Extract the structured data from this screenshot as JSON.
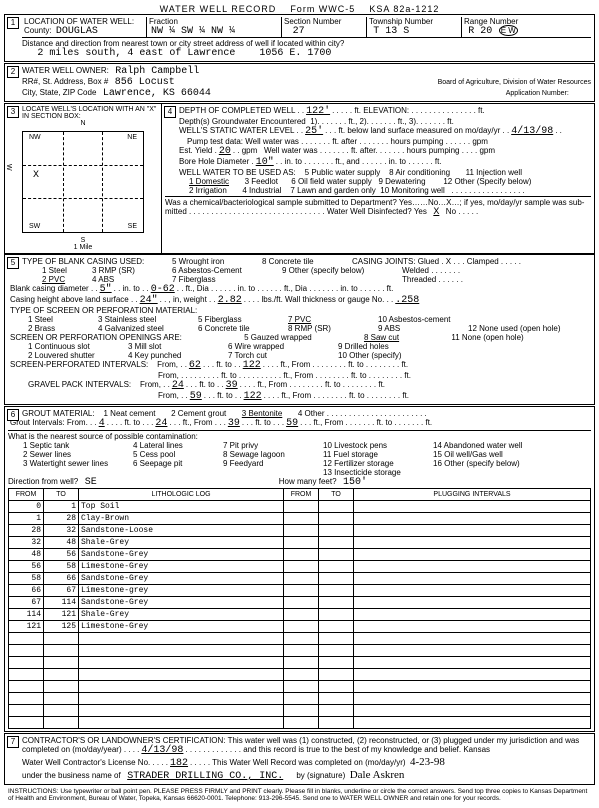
{
  "header": {
    "title": "WATER WELL RECORD",
    "form": "Form WWC-5",
    "ksa": "KSA 82a-1212"
  },
  "sec1": {
    "title": "LOCATION OF WATER WELL:",
    "county_label": "County:",
    "county": "DOUGLAS",
    "fraction_label": "Fraction",
    "fraction": "NW ¼   SW ¼   NW ¼",
    "section_label": "Section Number",
    "section": "27",
    "township_label": "Township Number",
    "township": "T 13 S",
    "range_label": "Range Number",
    "range": "R 20",
    "range_ew": "E W",
    "distance_label": "Distance and direction from nearest town or city street address of well if located within city?",
    "distance": "2 miles south, 4 east of Lawrence",
    "street": "1056 E. 1700"
  },
  "sec2": {
    "title": "WATER WELL OWNER:",
    "owner": "Ralph Campbell",
    "addr_label": "RR#, St. Address, Box #",
    "addr": "856 Locust",
    "city_label": "City, State, ZIP Code",
    "city": "Lawrence, KS  66044",
    "board": "Board of Agriculture, Division of Water Resources",
    "app_label": "Application Number:"
  },
  "sec3": {
    "title": "LOCATE WELL'S LOCATION WITH AN \"X\" IN SECTION BOX:",
    "n": "N",
    "s": "S",
    "e": "E",
    "w": "W",
    "nw": "NW",
    "ne": "NE",
    "sw": "SW",
    "se": "SE",
    "mile": "1 Mile"
  },
  "sec4": {
    "title": "DEPTH OF COMPLETED WELL",
    "depth": "122'",
    "ft": "ft.",
    "elev_label": "ELEVATION:",
    "gw_enc": "Depth(s) Groundwater Encountered",
    "enc1": "1)",
    "enc2": "2)",
    "enc3": "3)",
    "swl_label": "WELL'S STATIC WATER LEVEL",
    "swl": "25'",
    "swl_text": "ft. below land surface measured on mo/day/yr",
    "swl_date": "4/13/98",
    "pump_label": "Pump test data:  Well water was",
    "after1": "ft. after",
    "hours1": "hours pumping",
    "gpm": "gpm",
    "yield_label": "Est. Yield",
    "yield": "20",
    "yield_unit": "gpm",
    "well_was": "Well water was",
    "bore_label": "Bore Hole Diameter",
    "bore": "10\"",
    "into": "in. to",
    "use_label": "WELL WATER TO BE USED AS:",
    "uses": [
      "1 Domestic",
      "2 Irrigation",
      "3 Feedlot",
      "4 Industrial",
      "5 Public water supply",
      "6 Oil field water supply",
      "7 Lawn and garden only",
      "8 Air conditioning",
      "9 Dewatering",
      "10 Monitoring well",
      "11 Injection well",
      "12 Other (Specify below)"
    ],
    "chem_q": "Was a chemical/bacteriological sample submitted to Department? Yes……No…X…; if yes, mo/day/yr sample was sub-",
    "chem_q2": "mitted",
    "dis_label": "Water Well Disinfected? Yes",
    "dis_x": "X",
    "dis_no": "No"
  },
  "sec5": {
    "title": "TYPE OF BLANK CASING USED:",
    "opts1": [
      "1 Steel",
      "2 PVC",
      "3 RMP (SR)",
      "4 ABS",
      "5 Wrought iron",
      "6 Asbestos-Cement",
      "7 Fiberglass",
      "8 Concrete tile",
      "9 Other (specify below)"
    ],
    "joints": "CASING JOINTS: Glued . X . . . Clamped . . . . .",
    "welded": "Welded . . . . . . .",
    "threaded": "Threaded . . . . . .",
    "blank_dia_label": "Blank casing diameter",
    "blank_dia": "5\"",
    "blank_to": "0-62",
    "ft_dia": "ft., Dia",
    "in_to": "in. to",
    "casing_h_label": "Casing height above land surface",
    "casing_h": "24\"",
    "weight": ", in, weight",
    "weight_v": "2.82",
    "lbs": "lbs./ft. Wall thickness or gauge No.",
    "gauge": ".258",
    "screen_label": "TYPE OF SCREEN OR PERFORATION MATERIAL:",
    "screen_opts": [
      "1 Steel",
      "2 Brass",
      "3 Stainless steel",
      "4 Galvanized steel",
      "5 Fiberglass",
      "6 Concrete tile",
      "7 PVC",
      "8 RMP (SR)",
      "9 ABS",
      "10 Asbestos-cement",
      "11 Other (specify)",
      "12 None used (open hole)"
    ],
    "open_label": "SCREEN OR PERFORATION OPENINGS ARE:",
    "open_opts": [
      "1 Continuous slot",
      "2 Louvered shutter",
      "3 Mill slot",
      "4 Key punched",
      "5 Gauzed wrapped",
      "6 Wire wrapped",
      "7 Torch cut",
      "8 Saw cut",
      "9 Drilled holes",
      "10 Other (specify)",
      "11 None (open hole)"
    ],
    "perf_label": "SCREEN-PERFORATED INTERVALS:",
    "from": "From,",
    "to_label": "ft. to",
    "ft_from": "ft., From",
    "ft_to": "ft. to",
    "perf_from1": "62",
    "perf_to1": "122",
    "grav_label": "GRAVEL PACK INTERVALS:",
    "grav_from1": "24",
    "grav_to1": "39",
    "grav_from2": "59",
    "grav_to2": "122"
  },
  "sec6": {
    "title": "GROUT MATERIAL:",
    "opts": [
      "1 Neat cement",
      "2 Cement grout",
      "3 Bentonite",
      "4 Other"
    ],
    "grout_int": "Grout Intervals:    From. . .",
    "g_from": "4",
    "g_to": "24",
    "g_from2": "39",
    "g_to2": "59",
    "contam": "What is the nearest source of possible contamination:",
    "contam_opts": [
      "1 Septic tank",
      "2 Sewer lines",
      "3 Watertight sewer lines",
      "4 Lateral lines",
      "5 Cess pool",
      "6 Seepage pit",
      "7 Pit privy",
      "8 Sewage lagoon",
      "9 Feedyard",
      "10 Livestock pens",
      "11 Fuel storage",
      "12 Fertilizer storage",
      "13 Insecticide storage",
      "14 Abandoned water well",
      "15 Oil well/Gas well",
      "16 Other (specify below)"
    ],
    "dir_label": "Direction from well?",
    "dir": "SE",
    "howmany": "How many feet?",
    "howmany_v": "150'",
    "log_headers": [
      "FROM",
      "TO",
      "LITHOLOGIC LOG",
      "FROM",
      "TO",
      "PLUGGING INTERVALS"
    ],
    "log": [
      {
        "f": "0",
        "t": "1",
        "d": "Top Soil"
      },
      {
        "f": "1",
        "t": "28",
        "d": "Clay-Brown"
      },
      {
        "f": "28",
        "t": "32",
        "d": "Sandstone-Loose"
      },
      {
        "f": "32",
        "t": "48",
        "d": "Shale-Grey"
      },
      {
        "f": "48",
        "t": "56",
        "d": "Sandstone-Grey"
      },
      {
        "f": "56",
        "t": "58",
        "d": "Limestone-Grey"
      },
      {
        "f": "58",
        "t": "66",
        "d": "Sandstone-Grey"
      },
      {
        "f": "66",
        "t": "67",
        "d": "Limestone-grey"
      },
      {
        "f": "67",
        "t": "114",
        "d": "Sandstone-Grey"
      },
      {
        "f": "114",
        "t": "121",
        "d": "Shale-Grey"
      },
      {
        "f": "121",
        "t": "125",
        "d": "Limestone-Grey"
      },
      {
        "f": "",
        "t": "",
        "d": ""
      },
      {
        "f": "",
        "t": "",
        "d": ""
      },
      {
        "f": "",
        "t": "",
        "d": ""
      },
      {
        "f": "",
        "t": "",
        "d": ""
      },
      {
        "f": "",
        "t": "",
        "d": ""
      },
      {
        "f": "",
        "t": "",
        "d": ""
      },
      {
        "f": "",
        "t": "",
        "d": ""
      },
      {
        "f": "",
        "t": "",
        "d": ""
      }
    ]
  },
  "sec7": {
    "cert": "CONTRACTOR'S OR LANDOWNER'S CERTIFICATION: This water well was (1) constructed, (2) reconstructed, or (3) plugged under my jurisdiction and was",
    "completed": "completed on (mo/day/year)",
    "comp_date": "4/13/98",
    "cert2": "and this record is true to the best of my knowledge and belief. Kansas",
    "lic_label": "Water Well Contractor's License No.",
    "lic": "182",
    "rec_comp": "This Water Well Record was completed on (mo/day/yr)",
    "rec_date": "4-23-98",
    "bus_label": "under the business name of",
    "bus": "STRADER DRILLING CO., INC.",
    "sig_label": "by (signature)",
    "sig": "Dale Askren"
  },
  "instructions": "INSTRUCTIONS: Use typewriter or ball point pen. PLEASE PRESS FIRMLY and PRINT clearly. Please fill in blanks, underline or circle the correct answers. Send top three copies to Kansas Department of Health and Environment, Bureau of Water, Topeka, Kansas 66620-0001. Telephone: 913-296-5545. Send one to WATER WELL OWNER and retain one for your records."
}
